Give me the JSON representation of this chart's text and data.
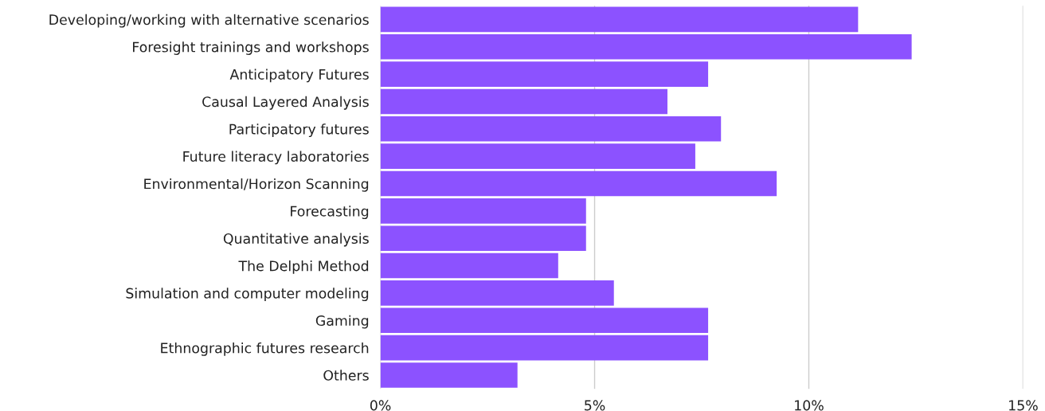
{
  "chart_data": {
    "type": "bar",
    "orientation": "horizontal",
    "categories": [
      "Developing/working with alternative scenarios",
      "Foresight trainings and workshops",
      "Anticipatory Futures",
      "Causal Layered Analysis",
      "Participatory futures",
      "Future literacy laboratories",
      "Environmental/Horizon Scanning",
      "Forecasting",
      "Quantitative analysis",
      "The Delphi Method",
      "Simulation and computer modeling",
      "Gaming",
      "Ethnographic futures research",
      "Others"
    ],
    "values": [
      11.15,
      12.4,
      7.65,
      6.7,
      7.95,
      7.35,
      9.25,
      4.8,
      4.8,
      4.15,
      5.45,
      7.65,
      7.65,
      3.2
    ],
    "color": "#8c52ff",
    "xlim": [
      0,
      15
    ],
    "xticks": [
      {
        "value": 0,
        "label": "0%"
      },
      {
        "value": 5,
        "label": "5%"
      },
      {
        "value": 10,
        "label": "10%"
      },
      {
        "value": 15,
        "label": "15%"
      }
    ],
    "grid": "x"
  }
}
